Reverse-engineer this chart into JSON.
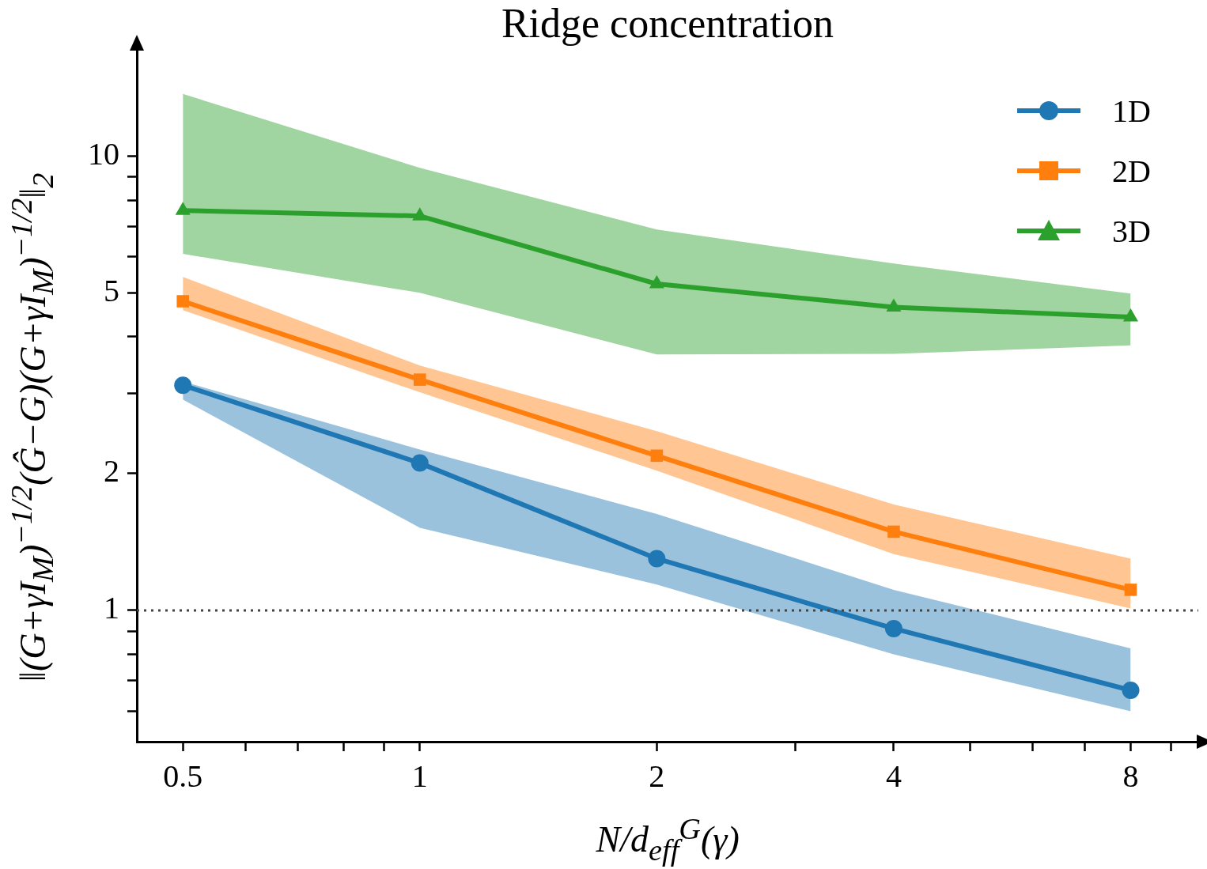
{
  "chart_data": {
    "type": "line",
    "title": "Ridge concentration",
    "xlabel": "N/d$_{eff}$$^{G}$(γ)",
    "ylabel": "‖(G+γI$_{M}$)$^{−1/2}$(Ĝ−G)(G+γI$_{M}$)$^{−1/2}$‖$_{2}$",
    "x": [
      0.5,
      1,
      2,
      4,
      8
    ],
    "log": "xy",
    "grid": false,
    "legend": "top right",
    "line_style": "solid",
    "xlim": [
      0.437,
      9.75
    ],
    "ylim": [
      0.514,
      17.2
    ],
    "xticks": [
      0.5,
      {
        "value": 0.6,
        "label": null
      },
      {
        "value": 0.7,
        "label": null
      },
      {
        "value": 0.8,
        "label": null
      },
      {
        "value": 0.9,
        "label": null
      },
      1,
      2,
      {
        "value": 3,
        "label": null
      },
      4,
      {
        "value": 5,
        "label": null
      },
      {
        "value": 6,
        "label": null
      },
      {
        "value": 7,
        "label": null
      },
      8,
      {
        "value": 9,
        "label": null
      }
    ],
    "yticks": [
      {
        "value": 0.6,
        "label": null
      },
      {
        "value": 0.7,
        "label": null
      },
      {
        "value": 0.8,
        "label": null
      },
      {
        "value": 0.9,
        "label": null
      },
      1,
      2,
      {
        "value": 3,
        "label": null
      },
      {
        "value": 4,
        "label": null
      },
      5,
      {
        "value": 6,
        "label": null
      },
      {
        "value": 7,
        "label": null
      },
      {
        "value": 8,
        "label": null
      },
      {
        "value": 9,
        "label": null
      },
      10
    ],
    "ref_lines": [
      {
        "axis": "y",
        "value": 1,
        "color": "#444444",
        "line_style": "dotted"
      }
    ],
    "series": [
      {
        "name": "1D",
        "color": "#1f77b4",
        "marker": "circle",
        "values": [
          3.13,
          2.11,
          1.3,
          0.912,
          0.667
        ],
        "lower": [
          2.91,
          1.52,
          1.14,
          0.8,
          0.6
        ],
        "upper": [
          3.19,
          2.26,
          1.63,
          1.11,
          0.825
        ]
      },
      {
        "name": "2D",
        "color": "#ff7f0e",
        "marker": "square",
        "values": [
          4.79,
          3.22,
          2.19,
          1.49,
          1.11
        ],
        "lower": [
          4.58,
          3.02,
          2.03,
          1.33,
          1.01
        ],
        "upper": [
          5.42,
          3.46,
          2.48,
          1.71,
          1.3
        ]
      },
      {
        "name": "3D",
        "color": "#2ca02c",
        "marker": "triangle",
        "values": [
          7.59,
          7.38,
          5.23,
          4.65,
          4.42
        ],
        "lower": [
          6.09,
          5.0,
          3.66,
          3.67,
          3.83
        ],
        "upper": [
          13.7,
          9.42,
          6.89,
          5.8,
          4.98
        ]
      }
    ]
  }
}
